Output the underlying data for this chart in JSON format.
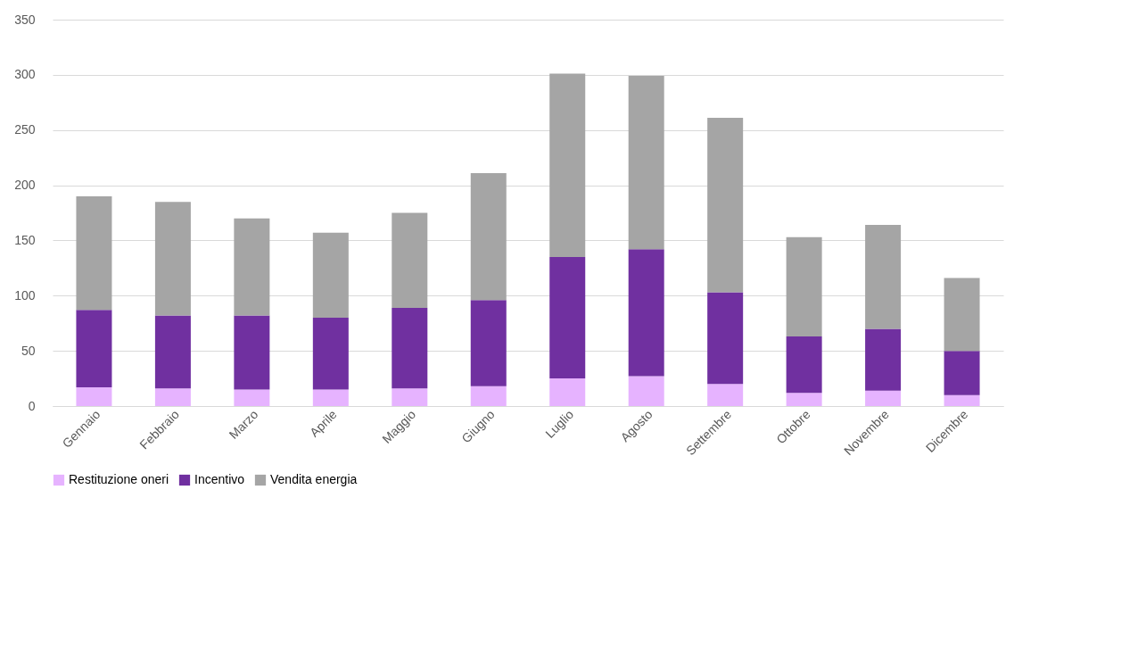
{
  "chart_data": {
    "type": "bar",
    "stacked": true,
    "categories": [
      "Gennaio",
      "Febbraio",
      "Marzo",
      "Aprile",
      "Maggio",
      "Giugno",
      "Luglio",
      "Agosto",
      "Settembre",
      "Ottobre",
      "Novembre",
      "Dicembre"
    ],
    "series": [
      {
        "name": "Restituzione oneri",
        "color": "#e6b3ff",
        "values": [
          17,
          16,
          15,
          15,
          16,
          18,
          25,
          27,
          20,
          12,
          14,
          10
        ]
      },
      {
        "name": "Incentivo",
        "color": "#7030a0",
        "values": [
          70,
          66,
          67,
          65,
          73,
          78,
          110,
          115,
          83,
          51,
          56,
          40
        ]
      },
      {
        "name": "Vendita energia",
        "color": "#a5a5a5",
        "values": [
          103,
          103,
          88,
          77,
          86,
          115,
          166,
          157,
          158,
          90,
          94,
          66
        ]
      }
    ],
    "ylim": [
      0,
      350
    ],
    "yticks": [
      0,
      50,
      100,
      150,
      200,
      250,
      300,
      350
    ],
    "grid": "y",
    "legend": "bottom"
  }
}
